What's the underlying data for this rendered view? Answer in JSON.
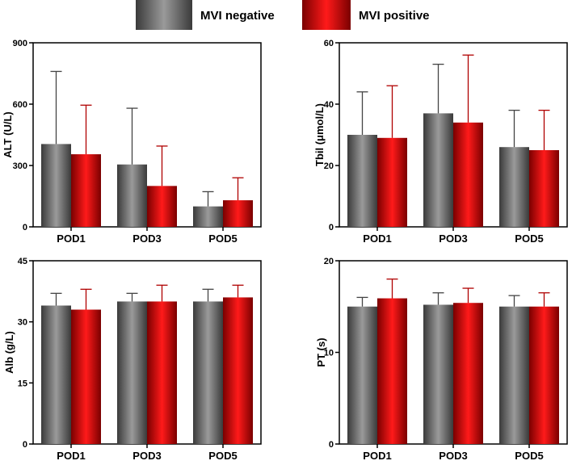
{
  "legend": {
    "items": [
      {
        "label": "MVI negative",
        "color_dark": "#3a3a3a",
        "color_light": "#9a9a9a"
      },
      {
        "label": "MVI positive",
        "color_dark": "#7a0000",
        "color_light": "#ff1a1a"
      }
    ]
  },
  "chart_data": [
    {
      "type": "bar",
      "panel": "top-left",
      "ylabel": "ALT (U/L)",
      "xlabel": "",
      "categories": [
        "POD1",
        "POD3",
        "POD5"
      ],
      "ylim": [
        0,
        900
      ],
      "yticks": [
        0,
        300,
        600,
        900
      ],
      "series": [
        {
          "name": "MVI negative",
          "values": [
            405,
            305,
            100
          ],
          "errors": [
            355,
            275,
            72
          ]
        },
        {
          "name": "MVI positive",
          "values": [
            355,
            200,
            130
          ],
          "errors": [
            240,
            195,
            110
          ]
        }
      ]
    },
    {
      "type": "bar",
      "panel": "top-right",
      "ylabel": "Tbil (μmol/L)",
      "xlabel": "",
      "categories": [
        "POD1",
        "POD3",
        "POD5"
      ],
      "ylim": [
        0,
        60
      ],
      "yticks": [
        0,
        20,
        40,
        60
      ],
      "series": [
        {
          "name": "MVI negative",
          "values": [
            30,
            37,
            26
          ],
          "errors": [
            14,
            16,
            12
          ]
        },
        {
          "name": "MVI positive",
          "values": [
            29,
            34,
            25
          ],
          "errors": [
            17,
            22,
            13
          ]
        }
      ]
    },
    {
      "type": "bar",
      "panel": "bottom-left",
      "ylabel": "Alb (g/L)",
      "xlabel": "",
      "categories": [
        "POD1",
        "POD3",
        "POD5"
      ],
      "ylim": [
        0,
        45
      ],
      "yticks": [
        0,
        15,
        30,
        45
      ],
      "series": [
        {
          "name": "MVI negative",
          "values": [
            34,
            35,
            35
          ],
          "errors": [
            3,
            2,
            3
          ]
        },
        {
          "name": "MVI positive",
          "values": [
            33,
            35,
            36
          ],
          "errors": [
            5,
            4,
            3
          ]
        }
      ]
    },
    {
      "type": "bar",
      "panel": "bottom-right",
      "ylabel": "PT (s)",
      "xlabel": "",
      "categories": [
        "POD1",
        "POD3",
        "POD5"
      ],
      "ylim": [
        0,
        20
      ],
      "yticks": [
        0,
        10,
        20
      ],
      "series": [
        {
          "name": "MVI negative",
          "values": [
            15,
            15.2,
            15
          ],
          "errors": [
            1,
            1.3,
            1.2
          ]
        },
        {
          "name": "MVI positive",
          "values": [
            15.9,
            15.4,
            15
          ],
          "errors": [
            2.1,
            1.6,
            1.5
          ]
        }
      ]
    }
  ]
}
